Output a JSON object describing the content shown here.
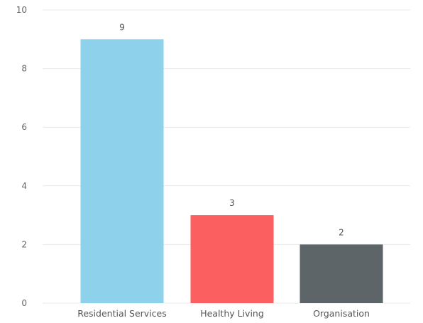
{
  "chart_data": {
    "type": "bar",
    "categories": [
      "Residential Services",
      "Healthy Living",
      "Organisation"
    ],
    "values": [
      9,
      3,
      2
    ],
    "data_labels": [
      "9",
      "3",
      "2"
    ],
    "colors": [
      "#8dd1ea",
      "#fb5f5f",
      "#5e6568"
    ],
    "ylim": [
      0,
      10
    ],
    "yticks": [
      0,
      2,
      4,
      6,
      8,
      10
    ],
    "ytick_labels": [
      "0",
      "2",
      "4",
      "6",
      "8",
      "10"
    ],
    "title": "",
    "xlabel": "",
    "ylabel": "",
    "grid": true
  }
}
